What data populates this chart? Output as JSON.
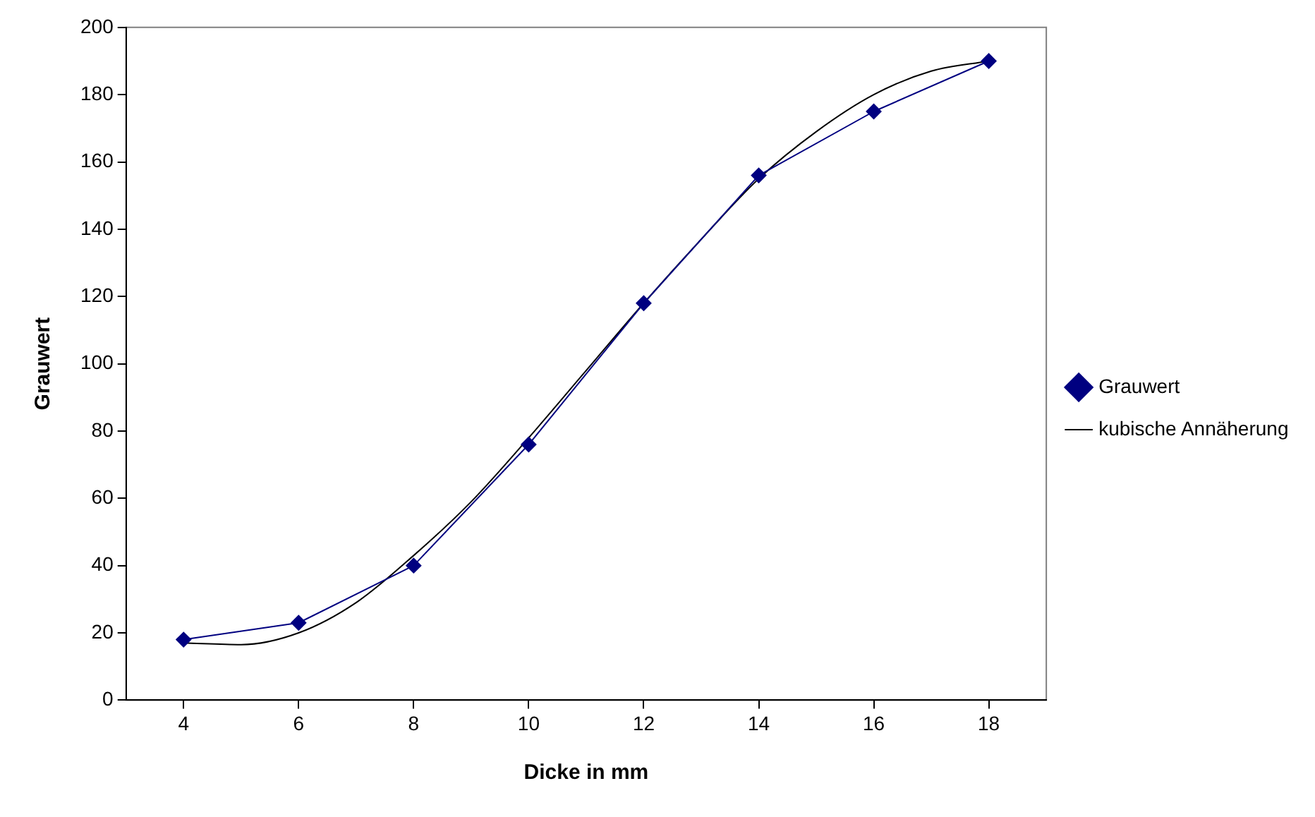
{
  "chart_data": {
    "type": "line",
    "xlabel": "Dicke in mm",
    "ylabel": "Grauwert",
    "xlim": [
      3,
      19
    ],
    "xticks": [
      4,
      6,
      8,
      10,
      12,
      14,
      16,
      18
    ],
    "ylim": [
      0,
      200
    ],
    "yticks": [
      0,
      20,
      40,
      60,
      80,
      100,
      120,
      140,
      160,
      180,
      200
    ],
    "grid": false,
    "legend": "right",
    "series": [
      {
        "name": "Grauwert",
        "color": "#000080",
        "marker": "diamond",
        "x": [
          4,
          6,
          8,
          10,
          12,
          14,
          16,
          18
        ],
        "values": [
          18,
          23,
          40,
          76,
          118,
          156,
          175,
          190
        ]
      },
      {
        "name": "kubische Annäherung",
        "color": "#000000",
        "marker": "none",
        "x": [
          4,
          5,
          6,
          7,
          8,
          9,
          10,
          11,
          12,
          13,
          14,
          15,
          16,
          17,
          18
        ],
        "values": [
          17,
          16.5,
          20,
          29,
          43,
          59,
          78,
          98,
          118,
          137,
          155,
          169,
          180,
          187,
          190
        ]
      }
    ]
  }
}
